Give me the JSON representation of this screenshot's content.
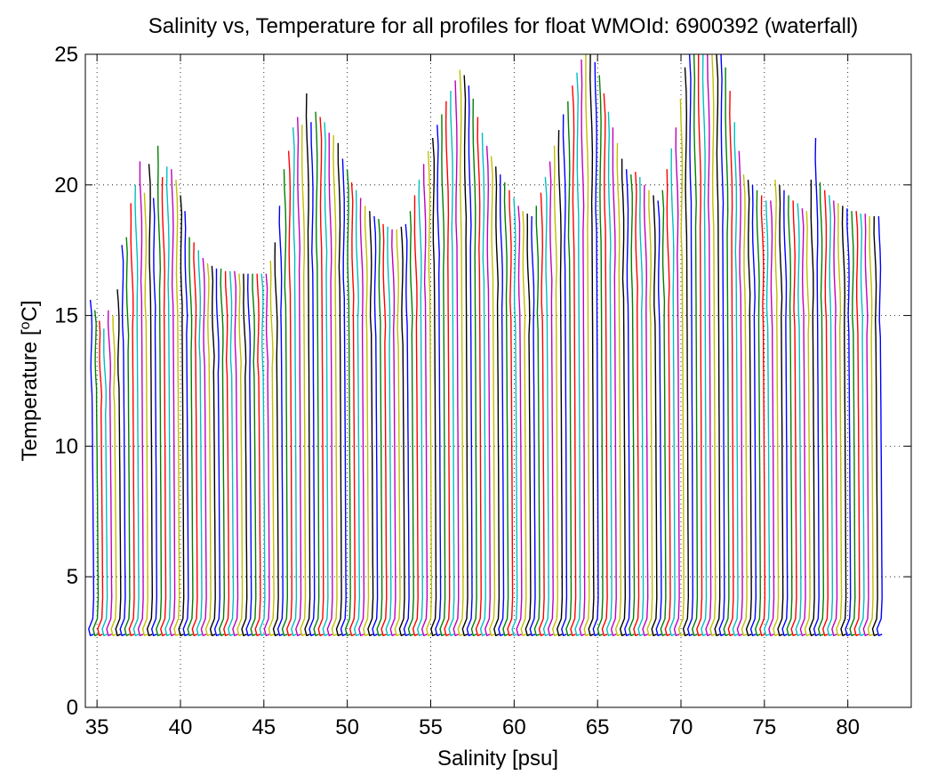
{
  "chart_data": {
    "type": "line",
    "title": "Salinity vs, Temperature for all profiles for float WMOId: 6900392 (waterfall)",
    "xlabel": "Salinity [psu]",
    "ylabel_main": "Temperature [",
    "ylabel_sup": "o",
    "ylabel_end": "C]",
    "xlim": [
      34.3,
      83.8
    ],
    "ylim": [
      0,
      25
    ],
    "xticks": [
      35,
      40,
      45,
      50,
      55,
      60,
      65,
      70,
      75,
      80
    ],
    "yticks": [
      0,
      5,
      10,
      15,
      20,
      25
    ],
    "grid": true,
    "grid_style": "dotted",
    "legend": "none",
    "series_colors": [
      "#0000ff",
      "#008000",
      "#ff0000",
      "#00bfbf",
      "#bf00bf",
      "#bfbf00",
      "#000000"
    ],
    "profile_count": 176,
    "profile_offset_psu": 0.27,
    "first_profile_salinity_at_surface": 34.6,
    "bottom_temperature": 2.75,
    "surface_temperature_by_profile": [
      15.6,
      15.2,
      14.8,
      14.5,
      15.2,
      15.0,
      16.0,
      17.7,
      18.0,
      19.3,
      20.0,
      20.9,
      19.7,
      20.8,
      19.5,
      21.5,
      20.3,
      20.7,
      20.6,
      20.2,
      19.6,
      19.0,
      18.0,
      17.8,
      17.5,
      17.2,
      17.0,
      16.9,
      16.8,
      16.8,
      16.7,
      16.7,
      16.7,
      16.6,
      16.6,
      16.6,
      16.6,
      16.6,
      16.6,
      16.6,
      17.1,
      17.8,
      19.2,
      20.6,
      21.3,
      22.2,
      22.6,
      22.3,
      23.5,
      22.4,
      22.8,
      22.6,
      22.4,
      22.0,
      21.9,
      21.6,
      21.0,
      20.6,
      20.1,
      19.8,
      19.5,
      19.2,
      19.0,
      18.8,
      18.7,
      18.5,
      18.4,
      18.3,
      18.3,
      18.4,
      18.5,
      19.0,
      19.6,
      20.2,
      20.8,
      21.3,
      21.8,
      22.3,
      22.7,
      23.2,
      23.6,
      24.0,
      24.4,
      24.2,
      23.8,
      23.3,
      22.6,
      22.0,
      21.5,
      21.1,
      20.7,
      20.4,
      20.1,
      19.8,
      19.5,
      19.2,
      19.0,
      18.9,
      18.8,
      19.2,
      19.7,
      20.3,
      20.9,
      21.5,
      22.1,
      22.7,
      23.2,
      23.8,
      24.3,
      24.8,
      25.0,
      25.0,
      24.7,
      24.2,
      23.5,
      22.8,
      22.2,
      21.6,
      21.0,
      20.6,
      20.4,
      20.5,
      20.3,
      20.0,
      19.8,
      19.6,
      19.4,
      19.8,
      20.6,
      21.4,
      22.2,
      23.3,
      24.5,
      25.0,
      25.0,
      25.0,
      25.0,
      25.0,
      25.0,
      25.0,
      25.0,
      24.5,
      23.6,
      22.4,
      21.3,
      20.4,
      20.2,
      20.0,
      19.8,
      19.6,
      19.4,
      19.4,
      20.2,
      20.0,
      19.8,
      19.6,
      19.4,
      19.3,
      19.1,
      19.0,
      20.2,
      21.8,
      20.1,
      19.8,
      19.6,
      19.4,
      19.3,
      19.2,
      19.1,
      19.0,
      19.0,
      18.9,
      18.9,
      18.8,
      18.8,
      18.8
    ]
  }
}
